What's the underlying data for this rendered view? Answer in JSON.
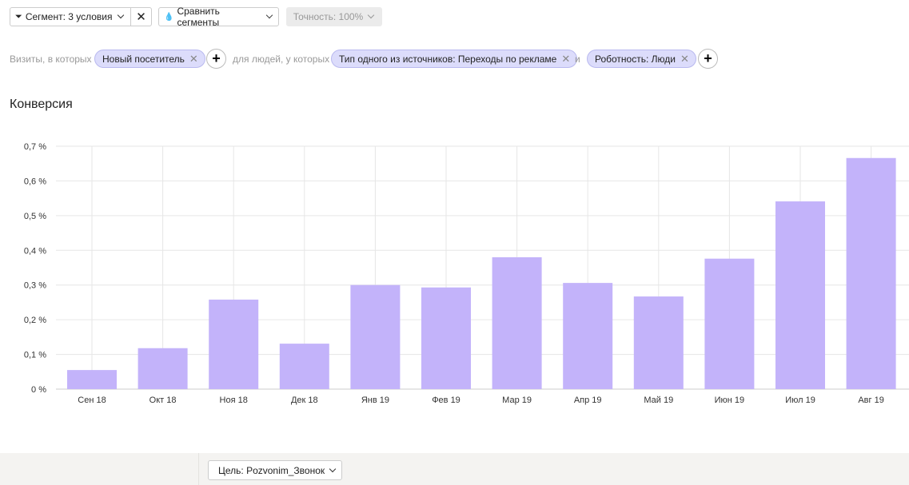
{
  "toolbar": {
    "segment_label": "Сегмент: 3 условия",
    "compare_label": "Сравнить сегменты",
    "accuracy_label": "Точность: 100%"
  },
  "filters": {
    "visits_label": "Визиты, в которых",
    "visit_chip": "Новый посетитель",
    "people_label": "для людей, у которых",
    "source_chip": "Тип одного из источников: Переходы по рекламе",
    "and_label": "и",
    "robot_chip": "Роботность: Люди"
  },
  "footer": {
    "goal_label": "Цель: Pozvonim_Звонок"
  },
  "colors": {
    "bar": "#c3b3fa",
    "grid": "#e6e6e6"
  },
  "chart_data": {
    "type": "bar",
    "title": "Конверсия",
    "categories": [
      "Сен 18",
      "Окт 18",
      "Ноя 18",
      "Дек 18",
      "Янв 19",
      "Фев 19",
      "Мар 19",
      "Апр 19",
      "Май 19",
      "Июн 19",
      "Июл 19",
      "Авг 19"
    ],
    "values": [
      0.055,
      0.118,
      0.258,
      0.131,
      0.3,
      0.293,
      0.38,
      0.306,
      0.267,
      0.376,
      0.541,
      0.666
    ],
    "yticks": [
      "0 %",
      "0,1 %",
      "0,2 %",
      "0,3 %",
      "0,4 %",
      "0,5 %",
      "0,6 %",
      "0,7 %"
    ],
    "ylim": [
      0,
      0.7
    ],
    "grid": true,
    "unit": "%"
  }
}
